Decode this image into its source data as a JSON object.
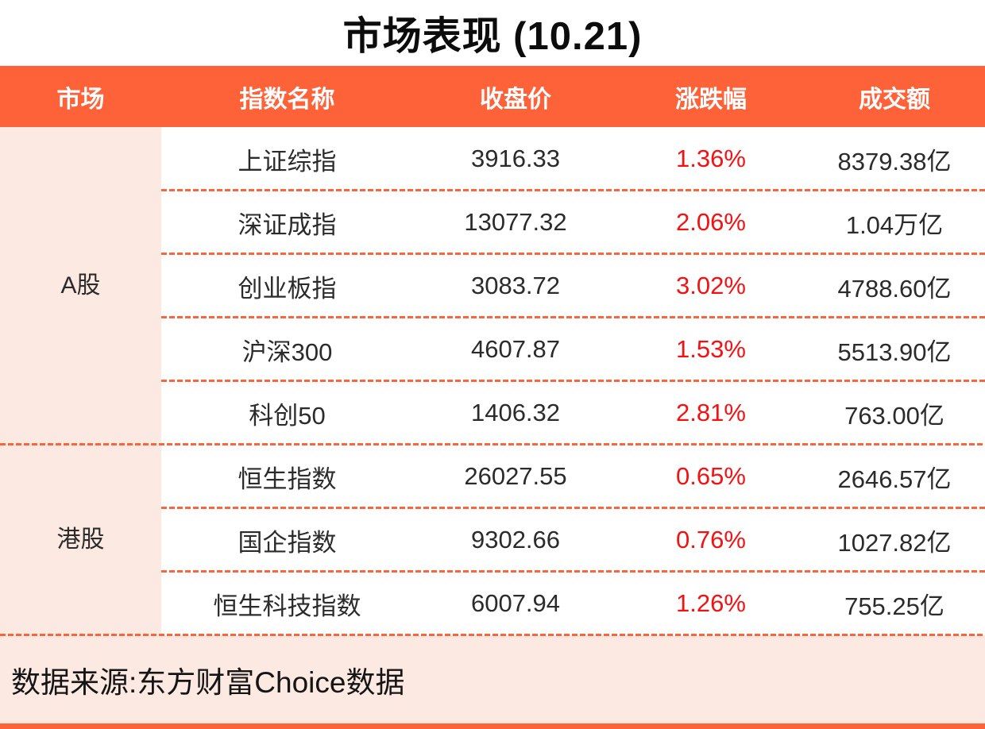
{
  "page": {
    "title": "市场表现 (10.21)",
    "footer_source": "数据来源:东方财富Choice数据"
  },
  "colors": {
    "accent_orange": "#FE6239",
    "light_pink": "#FCE9E2",
    "positive_red": "#F51111",
    "text_dark": "#2B2B2B",
    "header_text": "#FFFFFF"
  },
  "chart_data": {
    "type": "table",
    "title": "市场表现 (10.21)",
    "columns": [
      "市场",
      "指数名称",
      "收盘价",
      "涨跌幅",
      "成交额"
    ],
    "groups": [
      {
        "market": "A股",
        "rows": [
          {
            "name": "上证综指",
            "close": "3916.33",
            "change": "1.36%",
            "turnover": "8379.38亿"
          },
          {
            "name": "深证成指",
            "close": "13077.32",
            "change": "2.06%",
            "turnover": "1.04万亿"
          },
          {
            "name": "创业板指",
            "close": "3083.72",
            "change": "3.02%",
            "turnover": "4788.60亿"
          },
          {
            "name": "沪深300",
            "close": "4607.87",
            "change": "1.53%",
            "turnover": "5513.90亿"
          },
          {
            "name": "科创50",
            "close": "1406.32",
            "change": "2.81%",
            "turnover": "763.00亿"
          }
        ]
      },
      {
        "market": "港股",
        "rows": [
          {
            "name": "恒生指数",
            "close": "26027.55",
            "change": "0.65%",
            "turnover": "2646.57亿"
          },
          {
            "name": "国企指数",
            "close": "9302.66",
            "change": "0.76%",
            "turnover": "1027.82亿"
          },
          {
            "name": "恒生科技指数",
            "close": "6007.94",
            "change": "1.26%",
            "turnover": "755.25亿"
          }
        ]
      }
    ],
    "source": "数据来源:东方财富Choice数据"
  }
}
